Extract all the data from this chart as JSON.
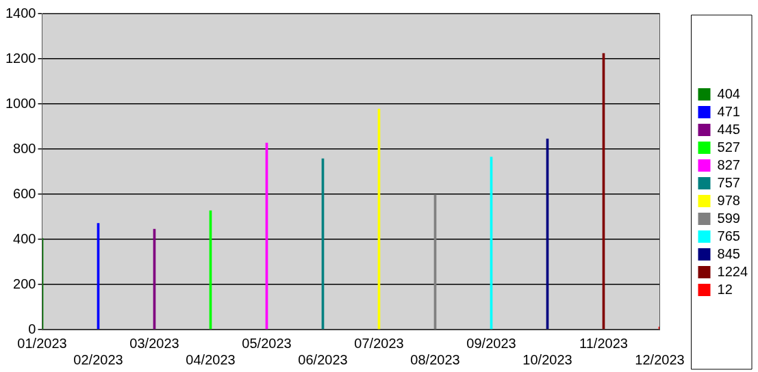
{
  "chart_data": {
    "type": "bar",
    "categories": [
      "01/2023",
      "02/2023",
      "03/2023",
      "04/2023",
      "05/2023",
      "06/2023",
      "07/2023",
      "08/2023",
      "09/2023",
      "10/2023",
      "11/2023",
      "12/2023"
    ],
    "series": [
      {
        "name": "404",
        "color": "#008000",
        "values": [
          404,
          null,
          null,
          null,
          null,
          null,
          null,
          null,
          null,
          null,
          null,
          null
        ]
      },
      {
        "name": "471",
        "color": "#0000ff",
        "values": [
          null,
          471,
          null,
          null,
          null,
          null,
          null,
          null,
          null,
          null,
          null,
          null
        ]
      },
      {
        "name": "445",
        "color": "#800080",
        "values": [
          null,
          null,
          445,
          null,
          null,
          null,
          null,
          null,
          null,
          null,
          null,
          null
        ]
      },
      {
        "name": "527",
        "color": "#00ff00",
        "values": [
          null,
          null,
          null,
          527,
          null,
          null,
          null,
          null,
          null,
          null,
          null,
          null
        ]
      },
      {
        "name": "827",
        "color": "#ff00ff",
        "values": [
          null,
          null,
          null,
          null,
          827,
          null,
          null,
          null,
          null,
          null,
          null,
          null
        ]
      },
      {
        "name": "757",
        "color": "#008080",
        "values": [
          null,
          null,
          null,
          null,
          null,
          757,
          null,
          null,
          null,
          null,
          null,
          null
        ]
      },
      {
        "name": "978",
        "color": "#ffff00",
        "values": [
          null,
          null,
          null,
          null,
          null,
          null,
          978,
          null,
          null,
          null,
          null,
          null
        ]
      },
      {
        "name": "599",
        "color": "#808080",
        "values": [
          null,
          null,
          null,
          null,
          null,
          null,
          null,
          599,
          null,
          null,
          null,
          null
        ]
      },
      {
        "name": "765",
        "color": "#00ffff",
        "values": [
          null,
          null,
          null,
          null,
          null,
          null,
          null,
          null,
          765,
          null,
          null,
          null
        ]
      },
      {
        "name": "845",
        "color": "#000080",
        "values": [
          null,
          null,
          null,
          null,
          null,
          null,
          null,
          null,
          null,
          845,
          null,
          null
        ]
      },
      {
        "name": "1224",
        "color": "#800000",
        "values": [
          null,
          null,
          null,
          null,
          null,
          null,
          null,
          null,
          null,
          null,
          1224,
          null
        ]
      },
      {
        "name": "12",
        "color": "#ff0000",
        "values": [
          null,
          null,
          null,
          null,
          null,
          null,
          null,
          null,
          null,
          null,
          null,
          12
        ]
      }
    ],
    "ylim": [
      0,
      1400
    ],
    "yticks": [
      0,
      200,
      400,
      600,
      800,
      1000,
      1200,
      1400
    ],
    "grid": "y",
    "legend": "right"
  }
}
